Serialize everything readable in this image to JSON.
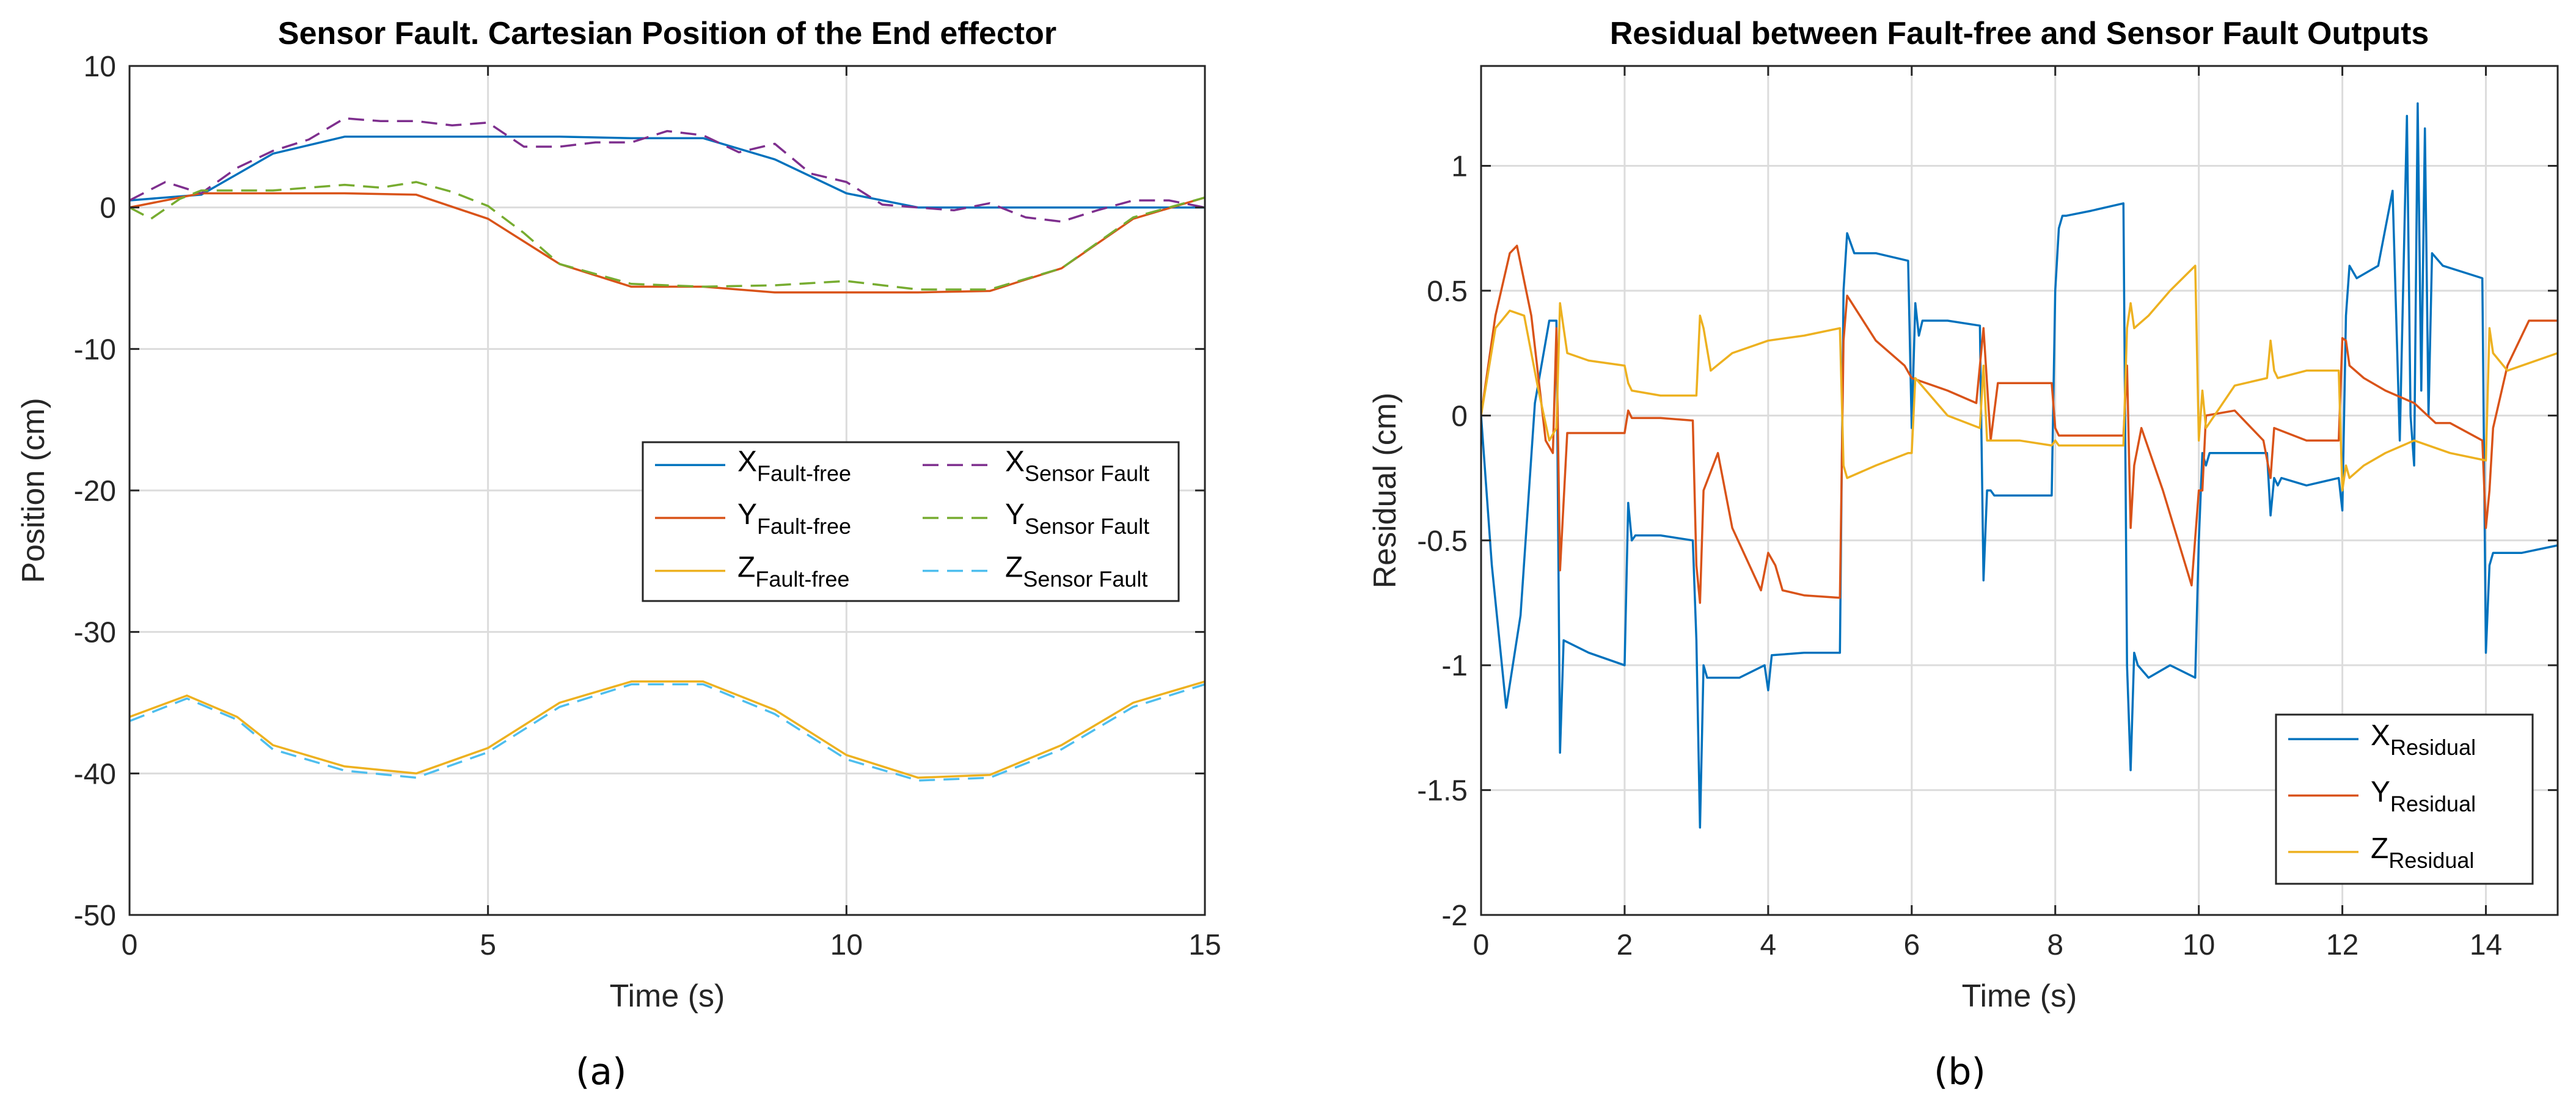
{
  "chart_data": [
    {
      "type": "line",
      "title": "Sensor Fault. Cartesian Position of the End effector",
      "xlabel": "Time (s)",
      "ylabel": "Position (cm)",
      "xlim": [
        0,
        15
      ],
      "ylim": [
        -50,
        10
      ],
      "xticks": [
        0,
        5,
        10,
        15
      ],
      "yticks": [
        10,
        0,
        -10,
        -20,
        -30,
        -40,
        -50
      ],
      "grid": true,
      "legend_position": "center-right",
      "legend_columns": 2,
      "series": [
        {
          "name": "X",
          "sub": "Fault-free",
          "color": "#0072BD",
          "dash": "solid",
          "x": [
            0,
            1,
            2,
            3,
            4,
            5,
            6,
            7,
            8,
            9,
            10,
            11,
            12,
            13,
            14,
            15
          ],
          "y": [
            0.5,
            0.9,
            3.8,
            5.0,
            5.0,
            5.0,
            5.0,
            4.9,
            4.9,
            3.4,
            1.0,
            0.0,
            0.0,
            0.0,
            0.0,
            0.0
          ]
        },
        {
          "name": "Y",
          "sub": "Fault-free",
          "color": "#D95319",
          "dash": "solid",
          "x": [
            0,
            1,
            2,
            3,
            4,
            5,
            6,
            7,
            8,
            9,
            10,
            11,
            12,
            13,
            14,
            15
          ],
          "y": [
            0.0,
            1.0,
            1.0,
            1.0,
            0.9,
            -0.8,
            -4.0,
            -5.6,
            -5.6,
            -6.0,
            -6.0,
            -6.0,
            -5.9,
            -4.3,
            -0.8,
            0.7
          ]
        },
        {
          "name": "Z",
          "sub": "Fault-free",
          "color": "#EDB120",
          "dash": "solid",
          "x": [
            0,
            0.8,
            1.5,
            2,
            3,
            4,
            5,
            6,
            7,
            8,
            9,
            10,
            11,
            12,
            13,
            14,
            15
          ],
          "y": [
            -36,
            -34.5,
            -36,
            -38,
            -39.5,
            -40,
            -38.2,
            -35,
            -33.5,
            -33.5,
            -35.5,
            -38.7,
            -40.3,
            -40.1,
            -38,
            -35,
            -33.5
          ]
        },
        {
          "name": "X",
          "sub": "Sensor Fault",
          "color": "#7E2F8E",
          "dash": "dash",
          "x": [
            0,
            0.5,
            1,
            1.5,
            2,
            2.5,
            3,
            3.5,
            4,
            4.5,
            5,
            5.5,
            6,
            6.5,
            7,
            7.5,
            8,
            8.5,
            9,
            9.5,
            10,
            10.5,
            11,
            11.5,
            12,
            12.5,
            13,
            13.5,
            14,
            14.5,
            15
          ],
          "y": [
            0.5,
            1.8,
            1.0,
            2.8,
            4.0,
            4.8,
            6.3,
            6.1,
            6.1,
            5.8,
            6.0,
            4.3,
            4.3,
            4.6,
            4.6,
            5.4,
            5.1,
            3.9,
            4.5,
            2.4,
            1.8,
            0.2,
            0.0,
            -0.2,
            0.3,
            -0.7,
            -1.0,
            -0.2,
            0.5,
            0.5,
            0.0
          ]
        },
        {
          "name": "Y",
          "sub": "Sensor Fault",
          "color": "#77AC30",
          "dash": "dash",
          "x": [
            0,
            0.3,
            0.7,
            1,
            2,
            3,
            3.5,
            4,
            4.5,
            5,
            5.5,
            6,
            7,
            8,
            9,
            10,
            11,
            12,
            13,
            14,
            15
          ],
          "y": [
            0.0,
            -0.8,
            0.6,
            1.2,
            1.2,
            1.6,
            1.4,
            1.8,
            1.1,
            0.1,
            -1.8,
            -4.0,
            -5.4,
            -5.6,
            -5.5,
            -5.2,
            -5.8,
            -5.8,
            -4.3,
            -0.7,
            0.7
          ]
        },
        {
          "name": "Z",
          "sub": "Sensor Fault",
          "color": "#4DBEEE",
          "dash": "dash",
          "x": [
            0,
            0.8,
            1.5,
            2,
            3,
            4,
            5,
            6,
            7,
            8,
            9,
            10,
            11,
            12,
            13,
            14,
            15
          ],
          "y": [
            -36.3,
            -34.7,
            -36.2,
            -38.3,
            -39.8,
            -40.3,
            -38.5,
            -35.3,
            -33.7,
            -33.7,
            -35.8,
            -39,
            -40.5,
            -40.3,
            -38.3,
            -35.3,
            -33.7
          ]
        }
      ],
      "sublabel": "(a)"
    },
    {
      "type": "line",
      "title": "Residual between Fault-free and Sensor Fault Outputs",
      "xlabel": "Time (s)",
      "ylabel": "Residual (cm)",
      "xlim": [
        0,
        15
      ],
      "ylim": [
        -2,
        1.4
      ],
      "xticks": [
        0,
        2,
        4,
        6,
        8,
        10,
        12,
        14
      ],
      "yticks": [
        1,
        0.5,
        0,
        -0.5,
        -1,
        -1.5,
        -2
      ],
      "grid": true,
      "legend_position": "bottom-right",
      "legend_columns": 1,
      "series": [
        {
          "name": "X",
          "sub": "Residual",
          "color": "#0072BD",
          "dash": "solid",
          "x": [
            0,
            0.15,
            0.35,
            0.55,
            0.75,
            0.95,
            1.05,
            1.1,
            1.15,
            1.5,
            2,
            2.05,
            2.1,
            2.15,
            2.5,
            2.95,
            3.0,
            3.05,
            3.1,
            3.15,
            3.3,
            3.6,
            3.95,
            4.0,
            4.05,
            4.5,
            5.0,
            5.05,
            5.1,
            5.2,
            5.5,
            5.95,
            6.0,
            6.05,
            6.1,
            6.15,
            6.5,
            6.95,
            7.0,
            7.05,
            7.1,
            7.15,
            7.5,
            7.95,
            8.0,
            8.05,
            8.1,
            8.15,
            8.5,
            8.95,
            9.0,
            9.05,
            9.1,
            9.15,
            9.3,
            9.6,
            9.95,
            10.0,
            10.05,
            10.1,
            10.15,
            10.5,
            10.95,
            11.0,
            11.05,
            11.1,
            11.15,
            11.5,
            11.95,
            12.0,
            12.05,
            12.1,
            12.2,
            12.5,
            12.7,
            12.8,
            12.9,
            12.95,
            13.0,
            13.05,
            13.1,
            13.15,
            13.2,
            13.25,
            13.4,
            13.95,
            14.0,
            14.05,
            14.1,
            14.15,
            14.5,
            15.0
          ],
          "y": [
            0,
            -0.6,
            -1.17,
            -0.8,
            0.05,
            0.38,
            0.38,
            -1.35,
            -0.9,
            -0.95,
            -1.0,
            -0.35,
            -0.5,
            -0.48,
            -0.48,
            -0.5,
            -0.9,
            -1.65,
            -1.0,
            -1.05,
            -1.05,
            -1.05,
            -1.0,
            -1.1,
            -0.96,
            -0.95,
            -0.95,
            0.5,
            0.73,
            0.65,
            0.65,
            0.62,
            -0.05,
            0.45,
            0.32,
            0.38,
            0.38,
            0.36,
            -0.66,
            -0.3,
            -0.3,
            -0.32,
            -0.32,
            -0.32,
            0.5,
            0.75,
            0.8,
            0.8,
            0.82,
            0.85,
            -1.0,
            -1.42,
            -0.95,
            -1.0,
            -1.05,
            -1.0,
            -1.05,
            -0.5,
            -0.15,
            -0.2,
            -0.15,
            -0.15,
            -0.15,
            -0.4,
            -0.25,
            -0.28,
            -0.25,
            -0.28,
            -0.25,
            -0.38,
            0.4,
            0.6,
            0.55,
            0.6,
            0.9,
            -0.1,
            1.2,
            0.0,
            -0.2,
            1.25,
            0.1,
            1.15,
            0.0,
            0.65,
            0.6,
            0.55,
            -0.95,
            -0.6,
            -0.55,
            -0.55,
            -0.55,
            -0.52
          ]
        },
        {
          "name": "Y",
          "sub": "Residual",
          "color": "#D95319",
          "dash": "solid",
          "x": [
            0,
            0.2,
            0.4,
            0.5,
            0.7,
            0.9,
            1.0,
            1.05,
            1.1,
            1.2,
            1.5,
            2.0,
            2.05,
            2.1,
            2.5,
            2.95,
            3.0,
            3.05,
            3.1,
            3.3,
            3.5,
            3.9,
            4.0,
            4.1,
            4.2,
            4.5,
            5.0,
            5.05,
            5.1,
            5.5,
            5.9,
            6.0,
            6.5,
            6.9,
            7.0,
            7.1,
            7.2,
            7.5,
            7.95,
            8.0,
            8.05,
            8.5,
            8.95,
            9.0,
            9.05,
            9.1,
            9.2,
            9.5,
            9.9,
            10.0,
            10.05,
            10.1,
            10.5,
            10.9,
            11.0,
            11.05,
            11.5,
            11.95,
            12.0,
            12.05,
            12.1,
            12.3,
            12.6,
            13.0,
            13.3,
            13.5,
            13.95,
            14.0,
            14.05,
            14.1,
            14.3,
            14.6,
            15.0
          ],
          "y": [
            0,
            0.4,
            0.65,
            0.68,
            0.4,
            -0.1,
            -0.15,
            0.35,
            -0.62,
            -0.07,
            -0.07,
            -0.07,
            0.02,
            -0.01,
            -0.01,
            -0.02,
            -0.6,
            -0.75,
            -0.3,
            -0.15,
            -0.45,
            -0.7,
            -0.55,
            -0.6,
            -0.7,
            -0.72,
            -0.73,
            0.3,
            0.48,
            0.3,
            0.2,
            0.15,
            0.1,
            0.05,
            0.35,
            -0.1,
            0.13,
            0.13,
            0.13,
            -0.05,
            -0.08,
            -0.08,
            -0.08,
            0.2,
            -0.45,
            -0.2,
            -0.05,
            -0.3,
            -0.68,
            -0.3,
            -0.3,
            0.0,
            0.02,
            -0.1,
            -0.25,
            -0.05,
            -0.1,
            -0.1,
            0.31,
            0.3,
            0.2,
            0.15,
            0.1,
            0.05,
            -0.03,
            -0.03,
            -0.1,
            -0.45,
            -0.3,
            -0.05,
            0.2,
            0.38,
            0.38
          ]
        },
        {
          "name": "Z",
          "sub": "Residual",
          "color": "#EDB120",
          "dash": "solid",
          "x": [
            0,
            0.2,
            0.4,
            0.6,
            0.8,
            0.95,
            1.05,
            1.1,
            1.2,
            1.5,
            2.0,
            2.05,
            2.1,
            2.5,
            2.95,
            3.0,
            3.05,
            3.1,
            3.2,
            3.5,
            4.0,
            4.5,
            5.0,
            5.05,
            5.1,
            5.5,
            5.95,
            6.0,
            6.05,
            6.5,
            6.95,
            7.0,
            7.05,
            7.5,
            7.95,
            8.0,
            8.05,
            8.5,
            8.95,
            9.0,
            9.05,
            9.1,
            9.3,
            9.6,
            9.95,
            10.0,
            10.05,
            10.1,
            10.5,
            10.95,
            11.0,
            11.05,
            11.1,
            11.5,
            11.95,
            12.0,
            12.05,
            12.1,
            12.3,
            12.6,
            13.0,
            13.5,
            14.0,
            14.05,
            14.1,
            14.3,
            15.0
          ],
          "y": [
            0,
            0.35,
            0.42,
            0.4,
            0.1,
            -0.1,
            -0.05,
            0.45,
            0.25,
            0.22,
            0.2,
            0.13,
            0.1,
            0.08,
            0.08,
            0.08,
            0.4,
            0.35,
            0.18,
            0.25,
            0.3,
            0.32,
            0.35,
            -0.2,
            -0.25,
            -0.2,
            -0.15,
            -0.15,
            0.15,
            0.0,
            -0.05,
            0.2,
            -0.1,
            -0.1,
            -0.12,
            -0.1,
            -0.12,
            -0.12,
            -0.12,
            0.35,
            0.45,
            0.35,
            0.4,
            0.5,
            0.6,
            -0.1,
            0.1,
            -0.05,
            0.12,
            0.15,
            0.3,
            0.18,
            0.15,
            0.18,
            0.18,
            -0.3,
            -0.2,
            -0.25,
            -0.2,
            -0.15,
            -0.1,
            -0.15,
            -0.18,
            0.35,
            0.25,
            0.18,
            0.25
          ]
        }
      ],
      "sublabel": "(b)"
    }
  ]
}
